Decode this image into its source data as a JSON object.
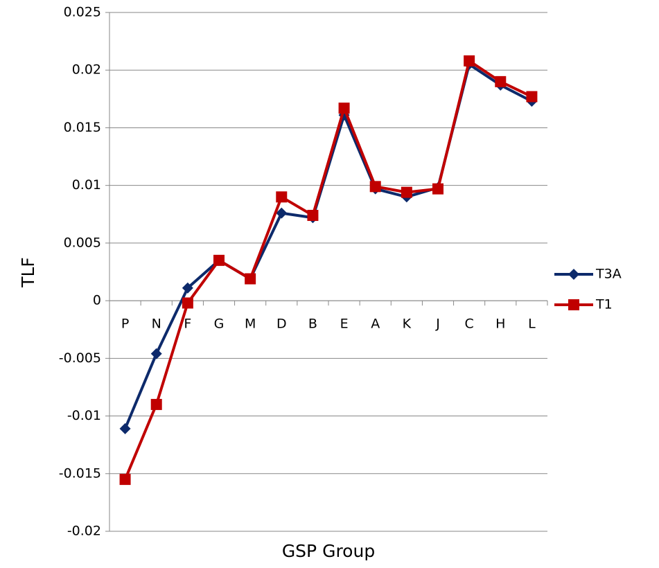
{
  "chart_data": {
    "type": "line",
    "x_label": "GSP Group",
    "y_label": "TLF",
    "categories": [
      "P",
      "N",
      "F",
      "G",
      "M",
      "D",
      "B",
      "E",
      "A",
      "K",
      "J",
      "C",
      "H",
      "L"
    ],
    "series": [
      {
        "name": "T3A",
        "color": "#0d2a6b",
        "marker": "diamond",
        "values": [
          -0.0111,
          -0.0046,
          0.0011,
          0.0035,
          0.0019,
          0.0076,
          0.0072,
          0.0161,
          0.0097,
          0.009,
          0.0098,
          0.0205,
          0.0187,
          0.0173
        ]
      },
      {
        "name": "T1",
        "color": "#c00000",
        "marker": "square",
        "values": [
          -0.0155,
          -0.009,
          -0.0002,
          0.0035,
          0.0019,
          0.009,
          0.0074,
          0.0167,
          0.0099,
          0.0094,
          0.0097,
          0.0208,
          0.019,
          0.0177
        ]
      }
    ],
    "ylim": [
      -0.02,
      0.025
    ],
    "yticks": [
      -0.02,
      -0.015,
      -0.01,
      -0.005,
      0,
      0.005,
      0.01,
      0.015,
      0.02,
      0.025
    ],
    "grid": true,
    "legend": "right"
  }
}
